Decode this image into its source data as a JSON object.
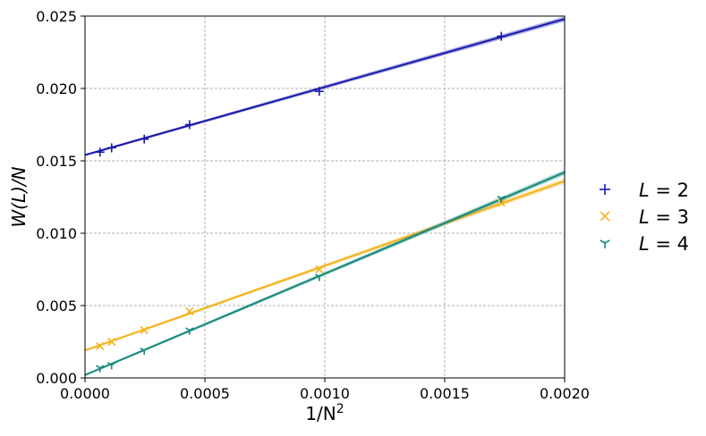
{
  "chart_data": {
    "type": "scatter",
    "xlabel": "1/N^2",
    "ylabel": "W(L)/N",
    "xlim": [
      0.0,
      0.002
    ],
    "ylim": [
      0.0,
      0.025
    ],
    "x_ticks": [
      "0.0000",
      "0.0005",
      "0.0010",
      "0.0015",
      "0.0020"
    ],
    "y_ticks": [
      "0.000",
      "0.005",
      "0.010",
      "0.015",
      "0.020",
      "0.025"
    ],
    "grid": true,
    "legend_position": "right",
    "series": [
      {
        "name": "L = 2",
        "label_var": "L",
        "label_val": "2",
        "marker": "+",
        "color": "#1a1aad",
        "x": [
          6.25e-05,
          0.000111,
          0.000247,
          0.000436,
          0.000977,
          0.001736
        ],
        "y": [
          0.0156,
          0.0159,
          0.0165,
          0.0175,
          0.0198,
          0.0236
        ],
        "fit": {
          "intercept": 0.0154,
          "slope": 4.7
        }
      },
      {
        "name": "L = 3",
        "label_var": "L",
        "label_val": "3",
        "marker": "x",
        "color": "#f5b31c",
        "x": [
          6.25e-05,
          0.000111,
          0.000247,
          0.000436,
          0.000977,
          0.001736
        ],
        "y": [
          0.0022,
          0.0025,
          0.0033,
          0.0046,
          0.0075,
          0.0121
        ],
        "fit": {
          "intercept": 0.0019,
          "slope": 5.85
        }
      },
      {
        "name": "L = 4",
        "label_var": "L",
        "label_val": "4",
        "marker": "tri_down",
        "color": "#168a7c",
        "x": [
          6.25e-05,
          0.000111,
          0.000247,
          0.000436,
          0.000977,
          0.001736
        ],
        "y": [
          0.0007,
          0.0009,
          0.0019,
          0.0033,
          0.007,
          0.0124
        ],
        "fit": {
          "intercept": 0.0002,
          "slope": 7.0
        }
      }
    ]
  }
}
